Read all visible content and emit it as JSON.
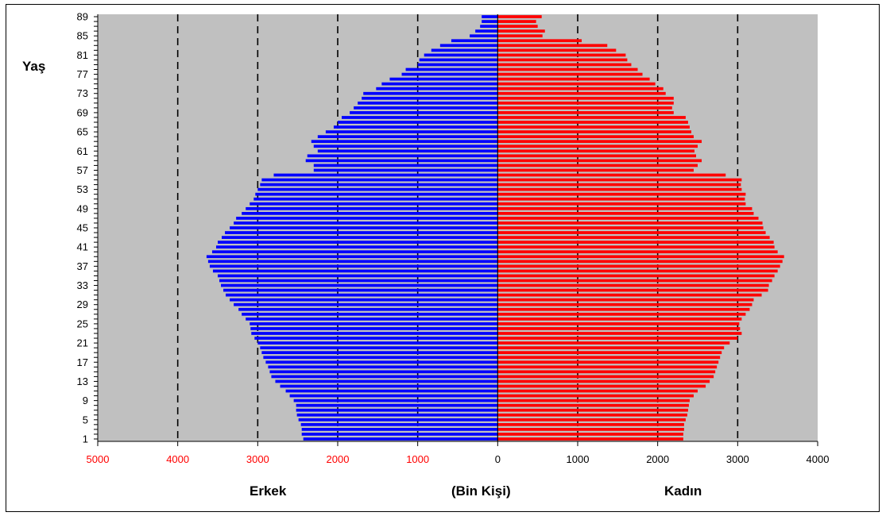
{
  "chart_data": {
    "type": "bar",
    "orientation": "horizontal",
    "subtype": "population-pyramid",
    "ylabel": "Yaş",
    "unit_label": "(Bin Kişi)",
    "x_ticks": [
      {
        "label": "5000",
        "value": -5000,
        "color": "#ff0000"
      },
      {
        "label": "4000",
        "value": -4000,
        "color": "#ff0000"
      },
      {
        "label": "3000",
        "value": -3000,
        "color": "#ff0000"
      },
      {
        "label": "2000",
        "value": -2000,
        "color": "#ff0000"
      },
      {
        "label": "1000",
        "value": -1000,
        "color": "#ff0000"
      },
      {
        "label": "0",
        "value": 0,
        "color": "#000000"
      },
      {
        "label": "1000",
        "value": 1000,
        "color": "#000000"
      },
      {
        "label": "2000",
        "value": 2000,
        "color": "#000000"
      },
      {
        "label": "3000",
        "value": 3000,
        "color": "#000000"
      },
      {
        "label": "4000",
        "value": 4000,
        "color": "#000000"
      }
    ],
    "xlim": [
      -5000,
      4000
    ],
    "y_tick_labels": [
      "1",
      "5",
      "9",
      "13",
      "17",
      "21",
      "25",
      "29",
      "33",
      "37",
      "41",
      "45",
      "49",
      "53",
      "57",
      "61",
      "65",
      "69",
      "73",
      "77",
      "81",
      "85",
      "89"
    ],
    "ages": [
      1,
      2,
      3,
      4,
      5,
      6,
      7,
      8,
      9,
      10,
      11,
      12,
      13,
      14,
      15,
      16,
      17,
      18,
      19,
      20,
      21,
      22,
      23,
      24,
      25,
      26,
      27,
      28,
      29,
      30,
      31,
      32,
      33,
      34,
      35,
      36,
      37,
      38,
      39,
      40,
      41,
      42,
      43,
      44,
      45,
      46,
      47,
      48,
      49,
      50,
      51,
      52,
      53,
      54,
      55,
      56,
      57,
      58,
      59,
      60,
      61,
      62,
      63,
      64,
      65,
      66,
      67,
      68,
      69,
      70,
      71,
      72,
      73,
      74,
      75,
      76,
      77,
      78,
      79,
      80,
      81,
      82,
      83,
      84,
      85,
      86,
      87,
      88,
      89
    ],
    "series": [
      {
        "name": "Erkek",
        "color": "#0000ff",
        "values": [
          2430,
          2450,
          2450,
          2460,
          2490,
          2510,
          2520,
          2520,
          2550,
          2600,
          2650,
          2720,
          2780,
          2830,
          2850,
          2870,
          2900,
          2930,
          2950,
          2970,
          3000,
          3040,
          3080,
          3090,
          3100,
          3150,
          3200,
          3240,
          3300,
          3350,
          3400,
          3430,
          3460,
          3480,
          3500,
          3560,
          3600,
          3620,
          3640,
          3570,
          3520,
          3500,
          3450,
          3410,
          3350,
          3300,
          3270,
          3200,
          3150,
          3100,
          3050,
          3030,
          3000,
          2970,
          2950,
          2800,
          2300,
          2300,
          2400,
          2380,
          2250,
          2300,
          2330,
          2250,
          2150,
          2050,
          2000,
          1950,
          1850,
          1800,
          1750,
          1700,
          1680,
          1520,
          1450,
          1350,
          1200,
          1150,
          1000,
          980,
          920,
          830,
          720,
          580,
          350,
          280,
          220,
          200,
          200
        ]
      },
      {
        "name": "Kadın",
        "color": "#ff0000",
        "values": [
          2320,
          2320,
          2330,
          2330,
          2350,
          2370,
          2380,
          2390,
          2400,
          2450,
          2500,
          2600,
          2650,
          2700,
          2720,
          2740,
          2760,
          2780,
          2800,
          2830,
          2900,
          3000,
          3050,
          3030,
          3020,
          3050,
          3100,
          3150,
          3180,
          3200,
          3300,
          3380,
          3390,
          3430,
          3460,
          3500,
          3530,
          3560,
          3580,
          3500,
          3460,
          3450,
          3400,
          3350,
          3320,
          3310,
          3260,
          3200,
          3180,
          3100,
          3090,
          3100,
          3050,
          3040,
          3050,
          2850,
          2450,
          2500,
          2550,
          2480,
          2460,
          2500,
          2550,
          2450,
          2420,
          2400,
          2380,
          2350,
          2200,
          2180,
          2200,
          2200,
          2100,
          2070,
          1970,
          1900,
          1810,
          1750,
          1670,
          1620,
          1600,
          1480,
          1370,
          1050,
          560,
          590,
          500,
          480,
          550
        ]
      }
    ],
    "bottom_labels": {
      "left": "Erkek",
      "center": "(Bin Kişi)",
      "right": "Kadın"
    },
    "plot_background": "#c0c0c0",
    "grid": "vertical dashed",
    "legend": "none"
  }
}
